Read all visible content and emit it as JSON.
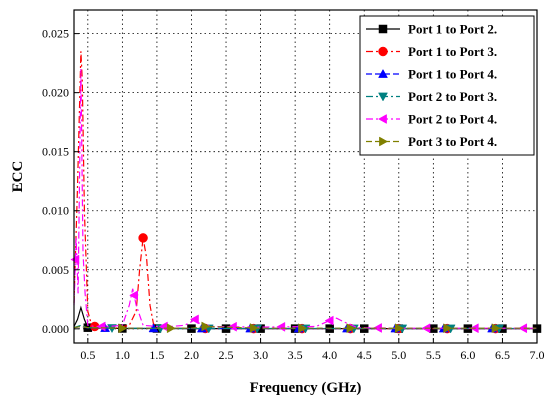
{
  "chart_data": {
    "type": "line",
    "title": "",
    "xlabel": "Frequency (GHz)",
    "ylabel": "ECC",
    "xlim": [
      0.3,
      7.0
    ],
    "ylim": [
      -0.0012,
      0.027
    ],
    "xticks": [
      0.5,
      1.0,
      1.5,
      2.0,
      2.5,
      3.0,
      3.5,
      4.0,
      4.5,
      5.0,
      5.5,
      6.0,
      6.5,
      7.0
    ],
    "xtick_labels": [
      "0.5",
      "1.0",
      "1.5",
      "2.0",
      "2.5",
      "3.0",
      "3.5",
      "4.0",
      "4.5",
      "5.0",
      "5.5",
      "6.0",
      "6.5",
      "7.0"
    ],
    "yticks": [
      0.0,
      0.005,
      0.01,
      0.015,
      0.02,
      0.025
    ],
    "ytick_labels": [
      "0.000",
      "0.005",
      "0.010",
      "0.015",
      "0.020",
      "0.025"
    ],
    "grid": true,
    "legend_position": "top-right",
    "series": [
      {
        "name": "Port 1 to Port 2.",
        "color": "#000000",
        "marker": "square",
        "dash": "solid",
        "x": [
          0.3,
          0.35,
          0.4,
          0.45,
          0.5,
          0.6,
          0.8,
          1.0,
          1.5,
          2.0,
          3.0,
          4.0,
          5.0,
          6.0,
          7.0
        ],
        "y": [
          0.0002,
          0.0008,
          0.0018,
          0.0008,
          0.0001,
          5e-05,
          5e-05,
          3e-05,
          3e-05,
          2e-05,
          2e-05,
          2e-05,
          2e-05,
          2e-05,
          2e-05
        ],
        "marker_x": [
          0.5,
          1.0,
          1.5,
          2.0,
          2.5,
          3.0,
          3.5,
          4.0,
          4.5,
          5.0,
          5.5,
          6.0,
          6.5,
          7.0
        ]
      },
      {
        "name": "Port 1 to Port 3.",
        "color": "#ff0000",
        "marker": "circle",
        "dash": "dashdot",
        "x": [
          0.3,
          0.35,
          0.4,
          0.42,
          0.45,
          0.5,
          0.55,
          0.6,
          0.7,
          0.9,
          1.1,
          1.2,
          1.25,
          1.3,
          1.35,
          1.4,
          1.45,
          1.6,
          1.8,
          2.0,
          3.0,
          4.0,
          5.0,
          6.0,
          7.0
        ],
        "y": [
          0.0022,
          0.012,
          0.0235,
          0.021,
          0.01,
          0.0015,
          0.0004,
          0.0002,
          0.0001,
          5e-05,
          0.0003,
          0.0015,
          0.005,
          0.0077,
          0.006,
          0.002,
          0.0004,
          0.0001,
          5e-05,
          3e-05,
          2e-05,
          2e-05,
          2e-05,
          2e-05,
          2e-05
        ],
        "marker_x": [
          0.6,
          1.3,
          2.2,
          2.9,
          3.6,
          4.3,
          5.0,
          5.7,
          6.4
        ]
      },
      {
        "name": "Port 1 to Port 4.",
        "color": "#0000ff",
        "marker": "triangle-up",
        "dash": "dashed",
        "x": [
          0.3,
          0.4,
          0.5,
          1.0,
          2.0,
          3.0,
          4.0,
          5.0,
          6.0,
          7.0
        ],
        "y": [
          0.0001,
          0.0002,
          8e-05,
          5e-05,
          3e-05,
          3e-05,
          3e-05,
          3e-05,
          3e-05,
          3e-05
        ],
        "marker_x": [
          0.75,
          1.45,
          2.15,
          2.85,
          3.55,
          4.25,
          4.95,
          5.65,
          6.35
        ]
      },
      {
        "name": "Port 2 to Port 3.",
        "color": "#008080",
        "marker": "triangle-down",
        "dash": "dashdot",
        "x": [
          0.3,
          0.4,
          0.5,
          1.0,
          2.0,
          3.0,
          4.0,
          5.0,
          6.0,
          7.0
        ],
        "y": [
          0.0001,
          0.0003,
          0.0001,
          5e-05,
          3e-05,
          3e-05,
          3e-05,
          3e-05,
          3e-05,
          3e-05
        ],
        "marker_x": [
          0.85,
          1.55,
          2.25,
          2.95,
          3.65,
          4.35,
          5.05,
          5.75,
          6.45
        ]
      },
      {
        "name": "Port 2 to Port 4.",
        "color": "#ff00ff",
        "marker": "triangle-left",
        "dash": "dashdot",
        "x": [
          0.3,
          0.33,
          0.36,
          0.4,
          0.43,
          0.46,
          0.5,
          0.6,
          0.8,
          1.0,
          1.1,
          1.15,
          1.2,
          1.3,
          1.5,
          1.7,
          1.9,
          2.0,
          2.05,
          2.1,
          2.3,
          3.0,
          3.8,
          4.0,
          4.1,
          4.2,
          4.4,
          5.0,
          6.0,
          7.0
        ],
        "y": [
          0.002,
          0.0078,
          0.003,
          0.022,
          0.0065,
          0.003,
          0.0003,
          0.0002,
          0.0002,
          0.0003,
          0.002,
          0.0034,
          0.002,
          0.0003,
          0.0002,
          0.0002,
          0.0003,
          0.0006,
          0.0008,
          0.0005,
          0.0002,
          0.00015,
          0.0002,
          0.0007,
          0.0009,
          0.0006,
          0.0001,
          5e-05,
          5e-05,
          5e-05
        ],
        "marker_x": [
          0.32,
          0.7,
          1.17,
          1.6,
          2.05,
          2.6,
          3.3,
          4.0,
          4.7,
          5.4,
          6.1,
          6.8
        ]
      },
      {
        "name": "Port 3 to Port 4.",
        "color": "#808000",
        "marker": "triangle-right",
        "dash": "dashed",
        "x": [
          0.3,
          0.4,
          0.5,
          1.0,
          2.0,
          2.2,
          3.0,
          4.0,
          5.0,
          6.0,
          7.0
        ],
        "y": [
          0.0001,
          0.0002,
          0.0001,
          5e-05,
          5e-05,
          0.0002,
          5e-05,
          5e-05,
          5e-05,
          5e-05,
          5e-05
        ],
        "marker_x": [
          1.0,
          1.7,
          2.2,
          2.9,
          3.6,
          4.3,
          5.0,
          5.7,
          6.4
        ]
      }
    ]
  }
}
